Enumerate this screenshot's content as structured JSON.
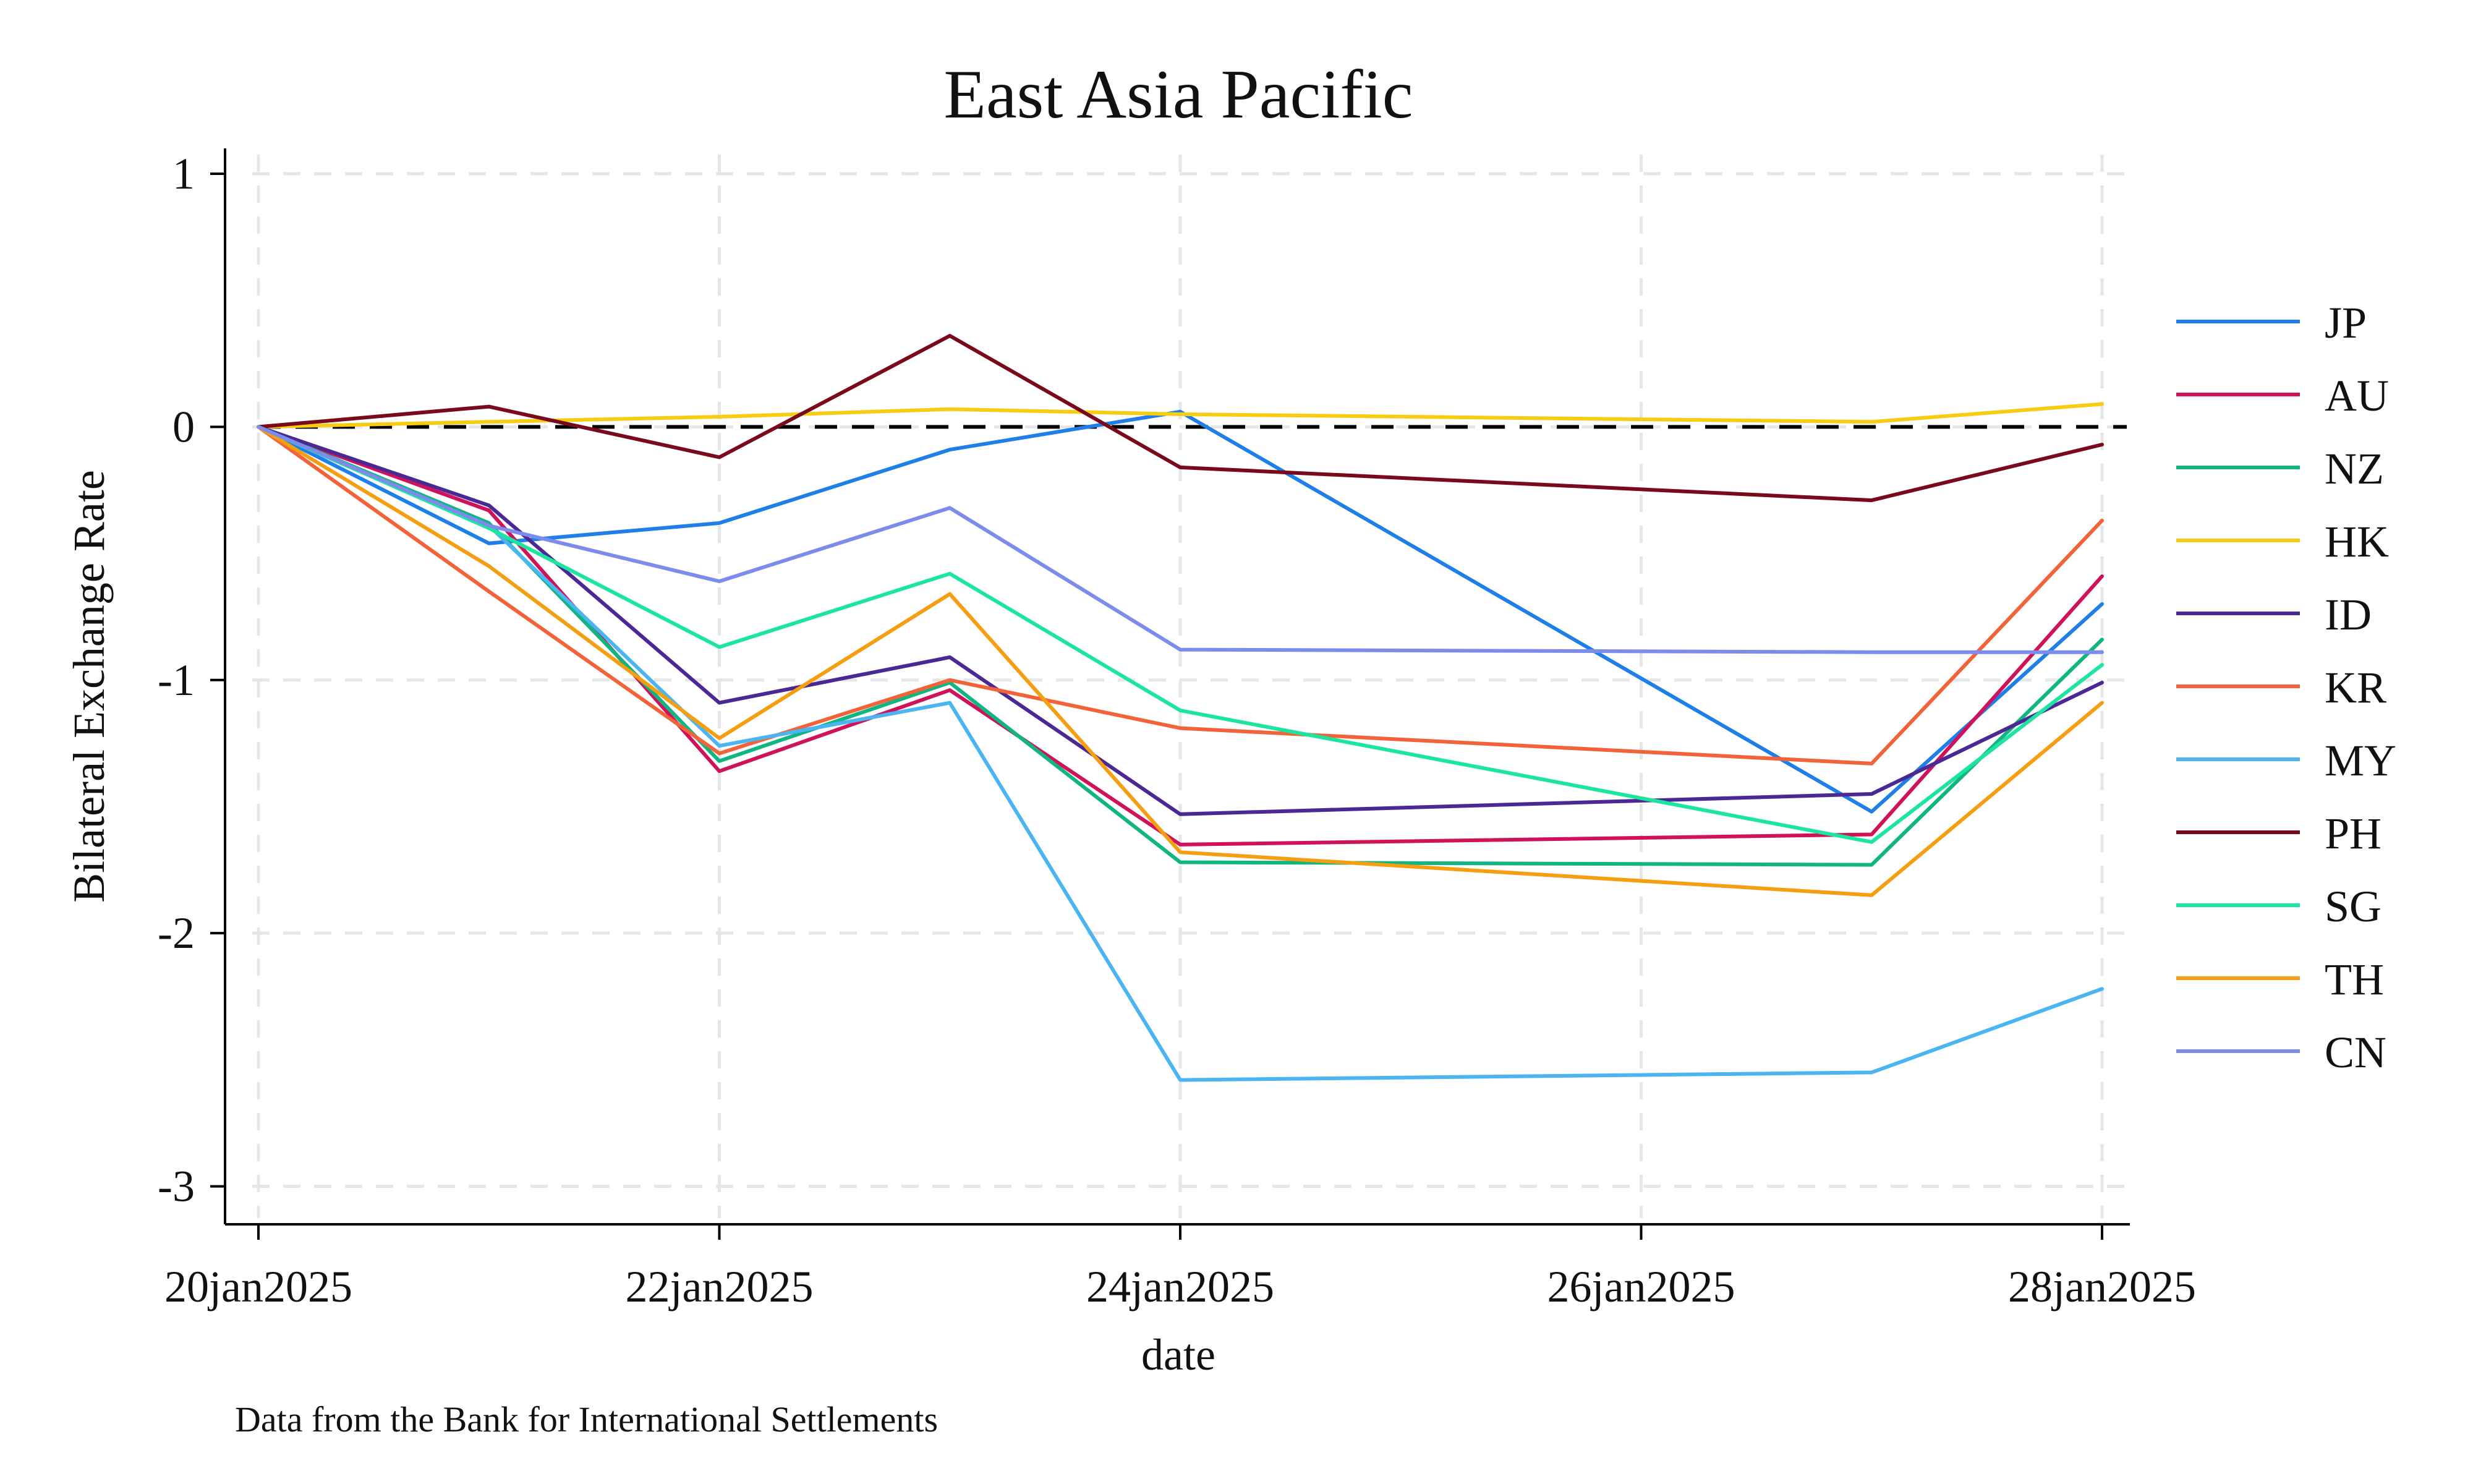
{
  "chart_data": {
    "type": "line",
    "title": "East Asia Pacific",
    "xlabel": "date",
    "ylabel": "Bilateral Exchange Rate",
    "note": "Data from the Bank for International Settlements",
    "x_dates": [
      "20jan2025",
      "21jan2025",
      "22jan2025",
      "23jan2025",
      "24jan2025",
      "27jan2025",
      "28jan2025"
    ],
    "x_ticks": [
      "20jan2025",
      "22jan2025",
      "24jan2025",
      "26jan2025",
      "28jan2025"
    ],
    "xlim": [
      "20jan2025",
      "28jan2025"
    ],
    "ylim": [
      -3.15,
      1.1
    ],
    "y_ticks": [
      1,
      0,
      -1,
      -2,
      -3
    ],
    "y_tick_labels": [
      "1",
      "0",
      "-1",
      "-2",
      "-3"
    ],
    "grid": true,
    "reference_line": 0,
    "legend_position": "right",
    "series": [
      {
        "name": "JP",
        "color": "#1E7FE8",
        "values": [
          0,
          -0.46,
          -0.38,
          -0.09,
          0.06,
          -1.52,
          -0.7
        ]
      },
      {
        "name": "AU",
        "color": "#D0125A",
        "values": [
          0,
          -0.33,
          -1.36,
          -1.04,
          -1.65,
          -1.61,
          -0.59
        ]
      },
      {
        "name": "NZ",
        "color": "#10B581",
        "values": [
          0,
          -0.38,
          -1.32,
          -1.01,
          -1.72,
          -1.73,
          -0.84
        ]
      },
      {
        "name": "HK",
        "color": "#F7CC12",
        "values": [
          0,
          0.02,
          0.04,
          0.07,
          0.05,
          0.02,
          0.09
        ]
      },
      {
        "name": "ID",
        "color": "#4B2893",
        "values": [
          0,
          -0.31,
          -1.09,
          -0.91,
          -1.53,
          -1.45,
          -1.01
        ]
      },
      {
        "name": "KR",
        "color": "#F2633A",
        "values": [
          0,
          -0.65,
          -1.29,
          -1.0,
          -1.19,
          -1.33,
          -0.37
        ]
      },
      {
        "name": "MY",
        "color": "#4BB5F2",
        "values": [
          0,
          -0.39,
          -1.26,
          -1.09,
          -2.58,
          -2.55,
          -2.22
        ]
      },
      {
        "name": "PH",
        "color": "#790A1C",
        "values": [
          0,
          0.08,
          -0.12,
          0.36,
          -0.16,
          -0.29,
          -0.07
        ]
      },
      {
        "name": "SG",
        "color": "#1CE5A0",
        "values": [
          0,
          -0.4,
          -0.87,
          -0.58,
          -1.12,
          -1.64,
          -0.94
        ]
      },
      {
        "name": "TH",
        "color": "#F59E12",
        "values": [
          0,
          -0.55,
          -1.23,
          -0.66,
          -1.68,
          -1.85,
          -1.09
        ]
      },
      {
        "name": "CN",
        "color": "#7C8CEB",
        "values": [
          0,
          -0.39,
          -0.61,
          -0.32,
          -0.88,
          -0.89,
          -0.89
        ]
      }
    ]
  }
}
